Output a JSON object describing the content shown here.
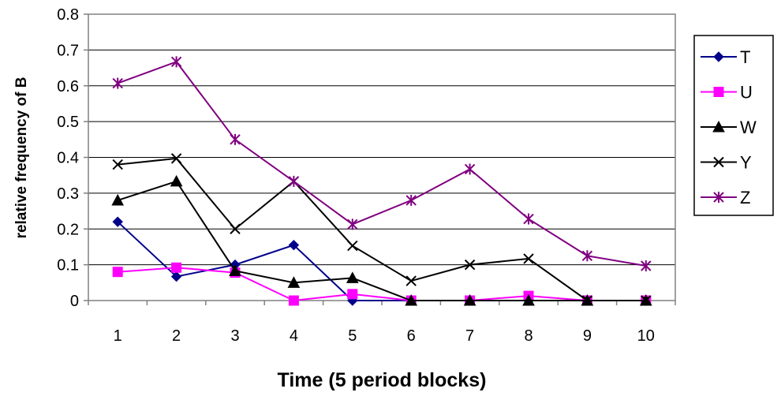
{
  "chart_data": {
    "type": "line",
    "title": "",
    "xlabel": "Time (5 period blocks)",
    "ylabel": "relative frequency of B",
    "categories": [
      "1",
      "2",
      "3",
      "4",
      "5",
      "6",
      "7",
      "8",
      "9",
      "10"
    ],
    "ylim": [
      0,
      0.8
    ],
    "yticks": [
      "0",
      "0.1",
      "0.2",
      "0.3",
      "0.4",
      "0.5",
      "0.6",
      "0.7",
      "0.8"
    ],
    "grid": true,
    "legend_position": "right",
    "series": [
      {
        "name": "T",
        "color": "#00008B",
        "marker": "diamond",
        "values": [
          0.22,
          0.067,
          0.1,
          0.155,
          0.0,
          0.0,
          0.0,
          0.0,
          0.0,
          0.0
        ]
      },
      {
        "name": "U",
        "color": "#FF00FF",
        "marker": "square",
        "values": [
          0.08,
          0.092,
          0.078,
          0.0,
          0.018,
          0.0,
          0.0,
          0.013,
          0.0,
          0.0
        ]
      },
      {
        "name": "W",
        "color": "#000000",
        "marker": "triangle",
        "values": [
          0.28,
          0.333,
          0.083,
          0.05,
          0.063,
          0.0,
          0.0,
          0.0,
          0.0,
          0.0
        ]
      },
      {
        "name": "Y",
        "color": "#000000",
        "marker": "x",
        "values": [
          0.38,
          0.397,
          0.2,
          0.333,
          0.153,
          0.055,
          0.1,
          0.117,
          0.0,
          0.0
        ]
      },
      {
        "name": "Z",
        "color": "#800080",
        "marker": "star",
        "values": [
          0.607,
          0.667,
          0.45,
          0.333,
          0.213,
          0.28,
          0.367,
          0.228,
          0.125,
          0.097
        ]
      }
    ]
  }
}
